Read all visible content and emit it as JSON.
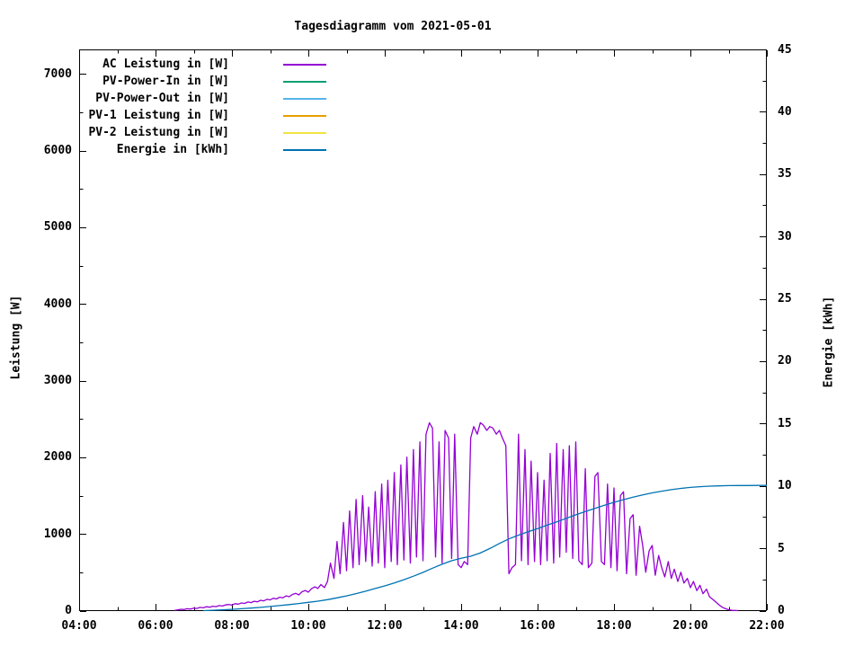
{
  "title": "Tagesdiagramm vom 2021-05-01",
  "colors": {
    "background": "#ffffff",
    "axis": "#000000",
    "ac_power": "#9400d3",
    "pv_power_in": "#009e73",
    "pv_power_out": "#56b4e9",
    "pv1_power": "#e69f00",
    "pv2_power": "#f0e442",
    "energy": "#0072b2"
  },
  "chart_data": {
    "type": "line",
    "title": "Tagesdiagramm vom 2021-05-01",
    "grid": false,
    "legend_position": "top-left-inside",
    "x_axis": {
      "unit": "time of day",
      "range_hours": [
        4,
        22
      ],
      "major_ticks": [
        [
          4,
          "04:00"
        ],
        [
          6,
          "06:00"
        ],
        [
          8,
          "08:00"
        ],
        [
          10,
          "10:00"
        ],
        [
          12,
          "12:00"
        ],
        [
          14,
          "14:00"
        ],
        [
          16,
          "16:00"
        ],
        [
          18,
          "18:00"
        ],
        [
          20,
          "20:00"
        ],
        [
          22,
          "22:00"
        ]
      ],
      "minor_tick_hours": [
        5,
        7,
        9,
        11,
        13,
        15,
        17,
        19,
        21
      ]
    },
    "y_left": {
      "label": "Leistung [W]",
      "min": 0,
      "max_visible_tick": 7000,
      "major_ticks": [
        [
          0,
          "0"
        ],
        [
          1000,
          "1000"
        ],
        [
          2000,
          "2000"
        ],
        [
          3000,
          "3000"
        ],
        [
          4000,
          "4000"
        ],
        [
          5000,
          "5000"
        ],
        [
          6000,
          "6000"
        ],
        [
          7000,
          "7000"
        ]
      ],
      "minor_ticks": [
        500,
        1500,
        2500,
        3500,
        4500,
        5500,
        6500
      ]
    },
    "y_right": {
      "label": "Energie [kWh]",
      "min": 0,
      "max": 45,
      "major_ticks": [
        [
          0,
          "0"
        ],
        [
          5,
          "5"
        ],
        [
          10,
          "10"
        ],
        [
          15,
          "15"
        ],
        [
          20,
          "20"
        ],
        [
          25,
          "25"
        ],
        [
          30,
          "30"
        ],
        [
          35,
          "35"
        ],
        [
          40,
          "40"
        ],
        [
          45,
          "45"
        ]
      ],
      "minor_ticks": [
        2.5,
        7.5,
        12.5,
        17.5,
        22.5,
        27.5,
        32.5,
        37.5,
        42.5
      ]
    },
    "legend": [
      {
        "label": "AC Leistung in [W]",
        "color": "#9400d3"
      },
      {
        "label": "PV-Power-In in [W]",
        "color": "#009e73"
      },
      {
        "label": "PV-Power-Out in [W]",
        "color": "#56b4e9"
      },
      {
        "label": "PV-1 Leistung in [W]",
        "color": "#e69f00"
      },
      {
        "label": "PV-2 Leistung in [W]",
        "color": "#f0e442"
      },
      {
        "label": "Energie in [kWh]",
        "color": "#0072b2"
      }
    ],
    "series": [
      {
        "name": "AC Leistung in [W]",
        "color": "#9400d3",
        "axis": "left",
        "points": [
          [
            6.5,
            2
          ],
          [
            6.58,
            10
          ],
          [
            6.67,
            18
          ],
          [
            6.75,
            14
          ],
          [
            6.83,
            25
          ],
          [
            6.92,
            20
          ],
          [
            7.0,
            32
          ],
          [
            7.08,
            28
          ],
          [
            7.17,
            42
          ],
          [
            7.25,
            36
          ],
          [
            7.33,
            50
          ],
          [
            7.42,
            44
          ],
          [
            7.5,
            58
          ],
          [
            7.58,
            52
          ],
          [
            7.67,
            66
          ],
          [
            7.75,
            60
          ],
          [
            7.83,
            74
          ],
          [
            7.92,
            80
          ],
          [
            8.0,
            72
          ],
          [
            8.08,
            90
          ],
          [
            8.17,
            84
          ],
          [
            8.25,
            100
          ],
          [
            8.33,
            94
          ],
          [
            8.42,
            112
          ],
          [
            8.5,
            104
          ],
          [
            8.58,
            122
          ],
          [
            8.67,
            115
          ],
          [
            8.75,
            135
          ],
          [
            8.83,
            126
          ],
          [
            8.92,
            148
          ],
          [
            9.0,
            140
          ],
          [
            9.08,
            160
          ],
          [
            9.17,
            152
          ],
          [
            9.25,
            175
          ],
          [
            9.33,
            166
          ],
          [
            9.42,
            192
          ],
          [
            9.5,
            182
          ],
          [
            9.58,
            210
          ],
          [
            9.67,
            225
          ],
          [
            9.75,
            205
          ],
          [
            9.83,
            245
          ],
          [
            9.92,
            262
          ],
          [
            10.0,
            240
          ],
          [
            10.08,
            285
          ],
          [
            10.17,
            310
          ],
          [
            10.25,
            290
          ],
          [
            10.33,
            340
          ],
          [
            10.42,
            300
          ],
          [
            10.5,
            380
          ],
          [
            10.58,
            620
          ],
          [
            10.67,
            420
          ],
          [
            10.75,
            900
          ],
          [
            10.83,
            480
          ],
          [
            10.92,
            1150
          ],
          [
            11.0,
            520
          ],
          [
            11.08,
            1300
          ],
          [
            11.17,
            560
          ],
          [
            11.25,
            1450
          ],
          [
            11.33,
            600
          ],
          [
            11.42,
            1500
          ],
          [
            11.5,
            640
          ],
          [
            11.58,
            1350
          ],
          [
            11.67,
            580
          ],
          [
            11.75,
            1550
          ],
          [
            11.83,
            620
          ],
          [
            11.92,
            1650
          ],
          [
            12.0,
            560
          ],
          [
            12.08,
            1700
          ],
          [
            12.17,
            640
          ],
          [
            12.25,
            1800
          ],
          [
            12.33,
            600
          ],
          [
            12.42,
            1900
          ],
          [
            12.5,
            660
          ],
          [
            12.58,
            2000
          ],
          [
            12.67,
            620
          ],
          [
            12.75,
            2100
          ],
          [
            12.83,
            700
          ],
          [
            12.92,
            2200
          ],
          [
            13.0,
            650
          ],
          [
            13.08,
            2300
          ],
          [
            13.17,
            2450
          ],
          [
            13.25,
            2380
          ],
          [
            13.33,
            700
          ],
          [
            13.42,
            2200
          ],
          [
            13.5,
            620
          ],
          [
            13.58,
            2350
          ],
          [
            13.67,
            2250
          ],
          [
            13.75,
            680
          ],
          [
            13.83,
            2300
          ],
          [
            13.92,
            600
          ],
          [
            14.0,
            560
          ],
          [
            14.08,
            640
          ],
          [
            14.17,
            600
          ],
          [
            14.25,
            2250
          ],
          [
            14.33,
            2400
          ],
          [
            14.42,
            2300
          ],
          [
            14.5,
            2450
          ],
          [
            14.58,
            2420
          ],
          [
            14.67,
            2350
          ],
          [
            14.75,
            2400
          ],
          [
            14.83,
            2380
          ],
          [
            14.92,
            2300
          ],
          [
            15.0,
            2350
          ],
          [
            15.08,
            2250
          ],
          [
            15.17,
            2150
          ],
          [
            15.25,
            480
          ],
          [
            15.33,
            560
          ],
          [
            15.42,
            600
          ],
          [
            15.5,
            2300
          ],
          [
            15.58,
            650
          ],
          [
            15.67,
            2100
          ],
          [
            15.75,
            600
          ],
          [
            15.83,
            1950
          ],
          [
            15.92,
            640
          ],
          [
            16.0,
            1800
          ],
          [
            16.08,
            600
          ],
          [
            16.17,
            1700
          ],
          [
            16.25,
            650
          ],
          [
            16.33,
            2050
          ],
          [
            16.42,
            620
          ],
          [
            16.5,
            2180
          ],
          [
            16.58,
            700
          ],
          [
            16.67,
            2100
          ],
          [
            16.75,
            760
          ],
          [
            16.83,
            2150
          ],
          [
            16.92,
            680
          ],
          [
            17.0,
            2200
          ],
          [
            17.08,
            650
          ],
          [
            17.17,
            600
          ],
          [
            17.25,
            1850
          ],
          [
            17.33,
            560
          ],
          [
            17.42,
            620
          ],
          [
            17.5,
            1750
          ],
          [
            17.58,
            1800
          ],
          [
            17.67,
            640
          ],
          [
            17.75,
            600
          ],
          [
            17.83,
            1650
          ],
          [
            17.92,
            560
          ],
          [
            18.0,
            1600
          ],
          [
            18.08,
            520
          ],
          [
            18.17,
            1500
          ],
          [
            18.25,
            1550
          ],
          [
            18.33,
            480
          ],
          [
            18.42,
            1200
          ],
          [
            18.5,
            1250
          ],
          [
            18.58,
            460
          ],
          [
            18.67,
            1100
          ],
          [
            18.75,
            850
          ],
          [
            18.83,
            500
          ],
          [
            18.92,
            780
          ],
          [
            19.0,
            850
          ],
          [
            19.08,
            460
          ],
          [
            19.17,
            720
          ],
          [
            19.25,
            560
          ],
          [
            19.33,
            440
          ],
          [
            19.42,
            640
          ],
          [
            19.5,
            420
          ],
          [
            19.58,
            540
          ],
          [
            19.67,
            380
          ],
          [
            19.75,
            500
          ],
          [
            19.83,
            360
          ],
          [
            19.92,
            420
          ],
          [
            20.0,
            300
          ],
          [
            20.08,
            380
          ],
          [
            20.17,
            260
          ],
          [
            20.25,
            330
          ],
          [
            20.33,
            220
          ],
          [
            20.42,
            280
          ],
          [
            20.5,
            180
          ],
          [
            20.58,
            150
          ],
          [
            20.67,
            110
          ],
          [
            20.75,
            75
          ],
          [
            20.83,
            45
          ],
          [
            20.92,
            25
          ],
          [
            21.0,
            12
          ],
          [
            21.08,
            5
          ],
          [
            21.17,
            2
          ],
          [
            21.25,
            0
          ]
        ]
      },
      {
        "name": "Energie in [kWh]",
        "color": "#0072b2",
        "axis": "right",
        "points": [
          [
            7.25,
            0
          ],
          [
            7.5,
            0.03
          ],
          [
            7.75,
            0.06
          ],
          [
            8.0,
            0.1
          ],
          [
            8.25,
            0.15
          ],
          [
            8.5,
            0.2
          ],
          [
            8.75,
            0.26
          ],
          [
            9.0,
            0.33
          ],
          [
            9.25,
            0.4
          ],
          [
            9.5,
            0.48
          ],
          [
            9.75,
            0.57
          ],
          [
            10.0,
            0.66
          ],
          [
            10.25,
            0.76
          ],
          [
            10.5,
            0.88
          ],
          [
            10.75,
            1.02
          ],
          [
            11.0,
            1.18
          ],
          [
            11.25,
            1.36
          ],
          [
            11.5,
            1.56
          ],
          [
            11.75,
            1.77
          ],
          [
            12.0,
            1.98
          ],
          [
            12.25,
            2.22
          ],
          [
            12.5,
            2.48
          ],
          [
            12.75,
            2.76
          ],
          [
            13.0,
            3.06
          ],
          [
            13.25,
            3.4
          ],
          [
            13.5,
            3.72
          ],
          [
            13.75,
            4.0
          ],
          [
            14.0,
            4.2
          ],
          [
            14.25,
            4.36
          ],
          [
            14.5,
            4.62
          ],
          [
            14.75,
            4.98
          ],
          [
            15.0,
            5.38
          ],
          [
            15.25,
            5.75
          ],
          [
            15.5,
            6.05
          ],
          [
            15.75,
            6.32
          ],
          [
            16.0,
            6.58
          ],
          [
            16.25,
            6.85
          ],
          [
            16.5,
            7.12
          ],
          [
            16.75,
            7.4
          ],
          [
            17.0,
            7.68
          ],
          [
            17.25,
            7.95
          ],
          [
            17.5,
            8.2
          ],
          [
            17.75,
            8.45
          ],
          [
            18.0,
            8.68
          ],
          [
            18.25,
            8.9
          ],
          [
            18.5,
            9.1
          ],
          [
            18.75,
            9.28
          ],
          [
            19.0,
            9.44
          ],
          [
            19.25,
            9.58
          ],
          [
            19.5,
            9.7
          ],
          [
            19.75,
            9.8
          ],
          [
            20.0,
            9.88
          ],
          [
            20.25,
            9.94
          ],
          [
            20.5,
            9.98
          ],
          [
            20.75,
            10.0
          ],
          [
            21.0,
            10.02
          ],
          [
            21.25,
            10.03
          ],
          [
            21.5,
            10.03
          ],
          [
            21.75,
            10.04
          ],
          [
            22.0,
            10.04
          ]
        ]
      }
    ]
  }
}
